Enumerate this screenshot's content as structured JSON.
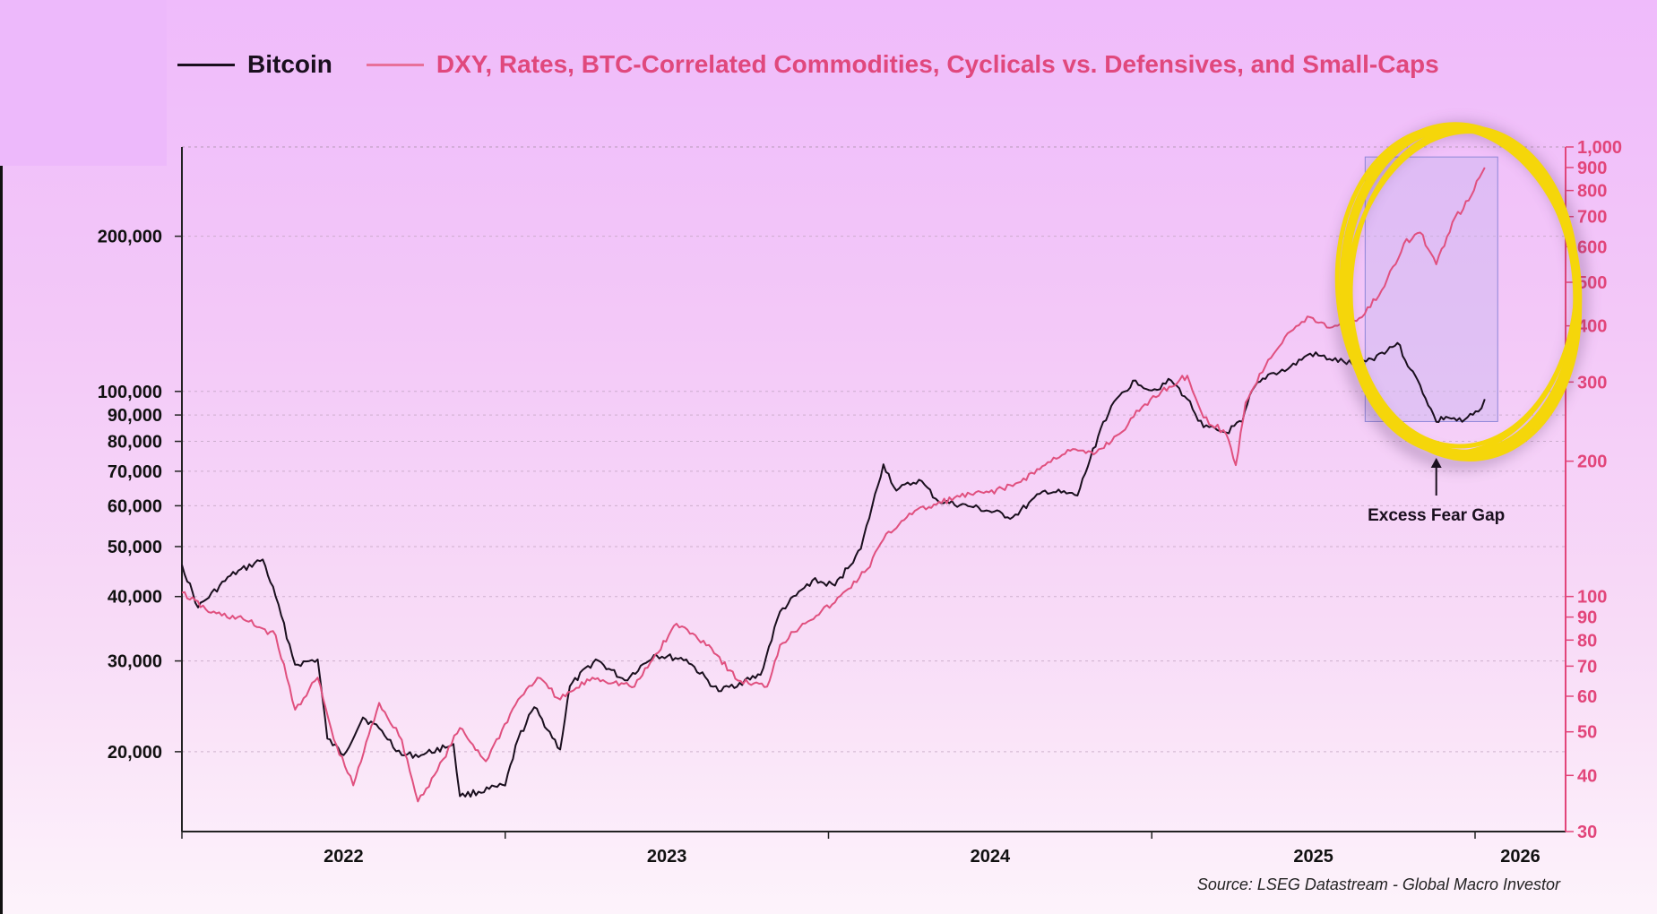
{
  "chart_data": {
    "type": "line",
    "title": "",
    "legend_placement": "top-left",
    "series": [
      {
        "name": "Bitcoin",
        "axis": "left",
        "color": "#1a0f1e",
        "x": [
          2022.0,
          2022.05,
          2022.15,
          2022.25,
          2022.29,
          2022.35,
          2022.42,
          2022.45,
          2022.5,
          2022.56,
          2022.61,
          2022.68,
          2022.74,
          2022.84,
          2022.86,
          2023.0,
          2023.04,
          2023.09,
          2023.17,
          2023.2,
          2023.28,
          2023.37,
          2023.46,
          2023.56,
          2023.66,
          2023.79,
          2023.85,
          2023.95,
          2024.02,
          2024.1,
          2024.17,
          2024.21,
          2024.28,
          2024.34,
          2024.44,
          2024.57,
          2024.67,
          2024.77,
          2024.85,
          2024.9,
          2024.95,
          2025.0,
          2025.06,
          2025.11,
          2025.16,
          2025.23,
          2025.28,
          2025.31,
          2025.36,
          2025.42,
          2025.49,
          2025.55,
          2025.62,
          2025.68,
          2025.76,
          2025.8,
          2025.83,
          2025.88,
          2025.91,
          2025.96,
          2026.01,
          2026.03
        ],
        "values": [
          46100,
          38100,
          43900,
          47200,
          40000,
          29500,
          30200,
          21200,
          19700,
          23300,
          22200,
          19700,
          19700,
          20700,
          16400,
          17200,
          21200,
          24400,
          20200,
          26800,
          30200,
          27500,
          30800,
          30200,
          26200,
          28200,
          37400,
          43000,
          42000,
          49500,
          72200,
          64200,
          67400,
          61200,
          59800,
          57000,
          64200,
          62800,
          87300,
          98100,
          105000,
          100400,
          105000,
          96600,
          85200,
          83200,
          87300,
          100400,
          107800,
          110400,
          118400,
          115600,
          113000,
          115600,
          124200,
          110400,
          102800,
          87300,
          89300,
          87300,
          91400,
          96600
        ]
      },
      {
        "name": "DXY, Rates, BTC-Correlated Commodities, Cyclicals vs. Defensives, and Small-Caps",
        "axis": "right",
        "color": "#e0507f",
        "x": [
          2022.0,
          2022.09,
          2022.19,
          2022.29,
          2022.35,
          2022.42,
          2022.47,
          2022.53,
          2022.61,
          2022.68,
          2022.73,
          2022.79,
          2022.86,
          2022.94,
          2023.04,
          2023.1,
          2023.17,
          2023.27,
          2023.4,
          2023.53,
          2023.63,
          2023.72,
          2023.81,
          2023.85,
          2023.92,
          2024.02,
          2024.12,
          2024.17,
          2024.25,
          2024.31,
          2024.39,
          2024.48,
          2024.57,
          2024.67,
          2024.74,
          2024.82,
          2024.9,
          2024.97,
          2025.03,
          2025.11,
          2025.16,
          2025.23,
          2025.26,
          2025.29,
          2025.36,
          2025.42,
          2025.49,
          2025.55,
          2025.65,
          2025.72,
          2025.78,
          2025.83,
          2025.88,
          2025.93,
          2025.98,
          2026.03
        ],
        "values": [
          102,
          92,
          89,
          82,
          56,
          66,
          48,
          38,
          58,
          48,
          35,
          41,
          51,
          43,
          59,
          66,
          59,
          66,
          63,
          87,
          78,
          65,
          63,
          78,
          87,
          97,
          115,
          134,
          153,
          158,
          166,
          170,
          176,
          196,
          212,
          207,
          230,
          264,
          286,
          310,
          250,
          230,
          196,
          270,
          336,
          385,
          418,
          396,
          418,
          490,
          610,
          645,
          548,
          680,
          760,
          900
        ]
      }
    ],
    "left_axis": {
      "scale": "log",
      "range": [
        14000,
        298000
      ],
      "tick_values": [
        200000,
        100000,
        90000,
        80000,
        70000,
        60000,
        50000,
        40000,
        30000,
        20000
      ],
      "tick_labels": [
        "200,000",
        "100,000",
        "90,000",
        "80,000",
        "70,000",
        "60,000",
        "50,000",
        "40,000",
        "30,000",
        "20,000"
      ]
    },
    "right_axis": {
      "scale": "log",
      "range": [
        30,
        1000
      ],
      "color": "#e2457a",
      "tick_values": [
        1000,
        900,
        800,
        700,
        600,
        500,
        400,
        300,
        200,
        100,
        90,
        80,
        70,
        60,
        50,
        40,
        30
      ],
      "tick_labels": [
        "1,000",
        "900",
        "800",
        "700",
        "600",
        "500",
        "400",
        "300",
        "200",
        "100",
        "90",
        "80",
        "70",
        "60",
        "50",
        "40",
        "30"
      ]
    },
    "x_axis": {
      "range": [
        2022.0,
        2026.28
      ],
      "tick_years": [
        2022,
        2023,
        2024,
        2025,
        2026
      ],
      "labels": [
        {
          "text": "2022",
          "at": 2022.5
        },
        {
          "text": "2023",
          "at": 2023.5
        },
        {
          "text": "2024",
          "at": 2024.5
        },
        {
          "text": "2025",
          "at": 2025.5
        },
        {
          "text": "2026",
          "at": 2026.14
        }
      ]
    },
    "grid": true,
    "highlight": {
      "x_range": [
        2025.66,
        2026.07
      ],
      "right_range": [
        245,
        950
      ],
      "color": "#c9b6f0",
      "ring_color": "#f5d60a"
    },
    "annotation": {
      "text": "Excess Fear Gap",
      "x": 2025.88
    }
  },
  "legend": {
    "bitcoin": "Bitcoin",
    "composite": "DXY, Rates, BTC-Correlated Commodities, Cyclicals vs. Defensives, and Small-Caps"
  },
  "source": "Source: LSEG Datastream - Global Macro Investor"
}
